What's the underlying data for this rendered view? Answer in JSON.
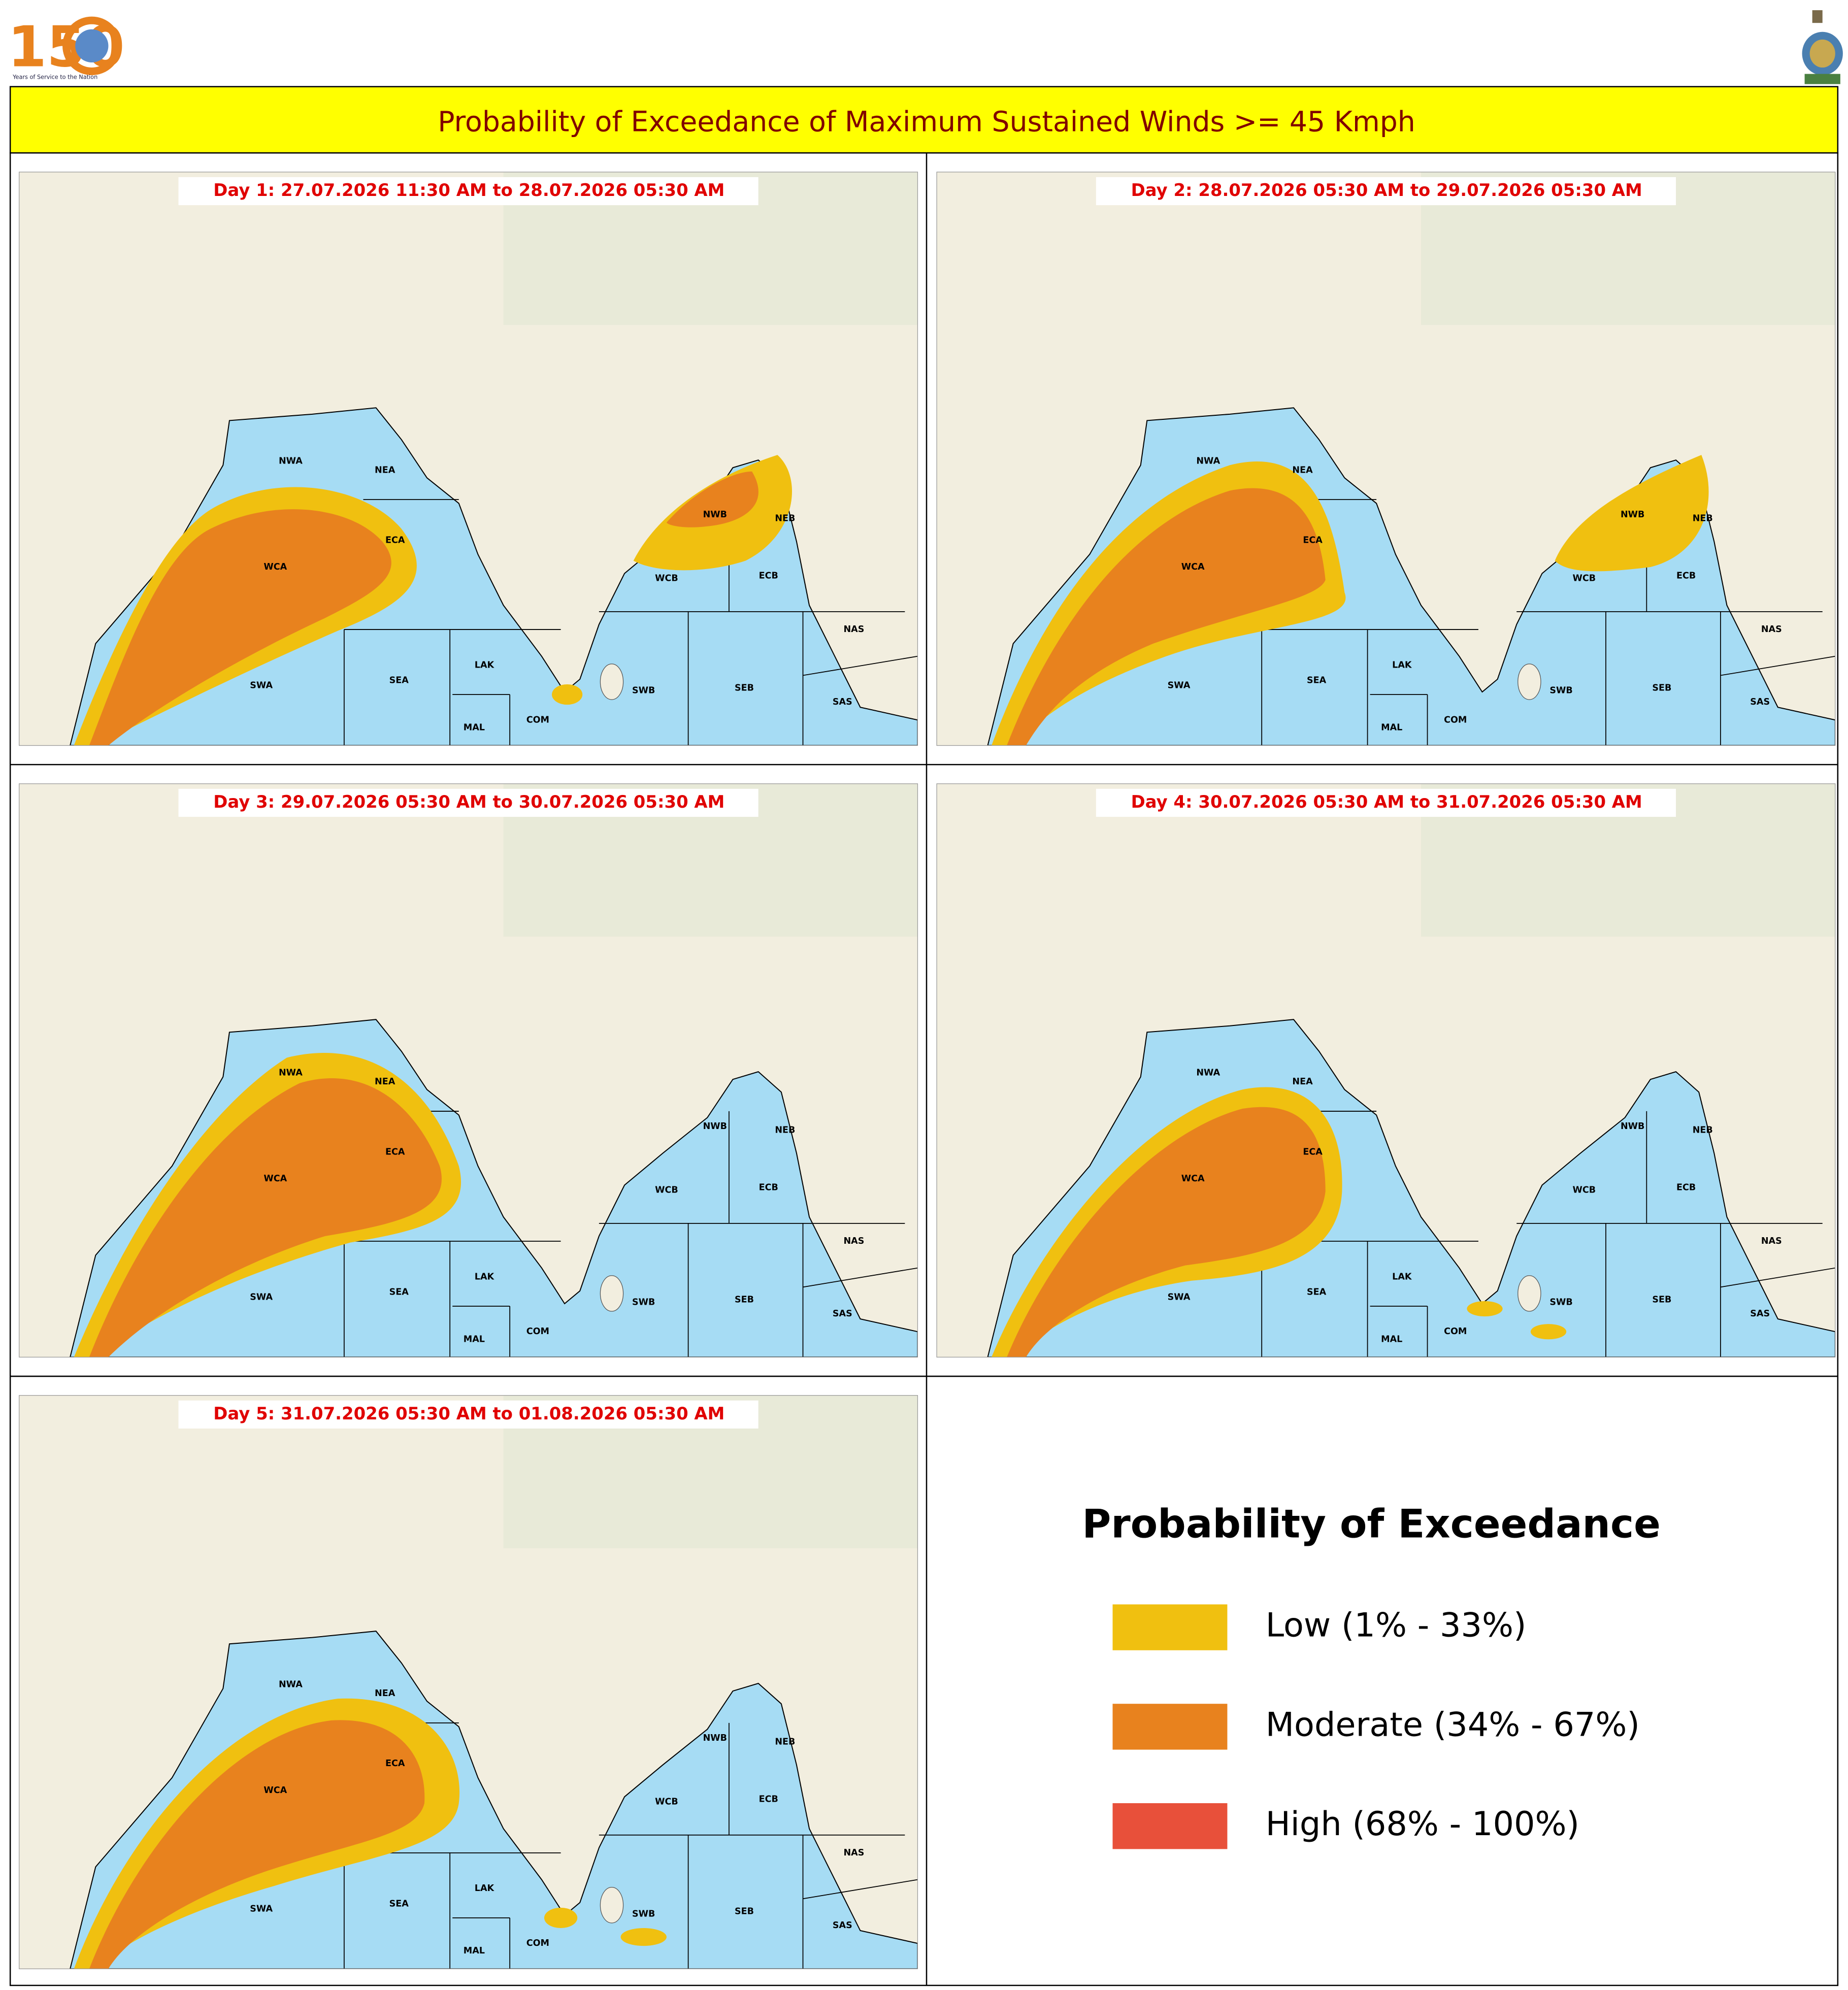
{
  "header": {
    "logo_number": "150",
    "logo_tagline": "Years of Service to the Nation"
  },
  "title": "Probability of Exceedance of Maximum Sustained Winds >= 45 Kmph",
  "panels": [
    {
      "label": "Day 1: 27.07.2026 11:30 AM to 28.07.2026 05:30 AM"
    },
    {
      "label": "Day 2: 28.07.2026 05:30 AM to 29.07.2026 05:30 AM"
    },
    {
      "label": "Day 3: 29.07.2026 05:30 AM to 30.07.2026 05:30 AM"
    },
    {
      "label": "Day 4: 30.07.2026 05:30 AM to 31.07.2026 05:30 AM"
    },
    {
      "label": "Day 5: 31.07.2026 05:30 AM to 01.08.2026 05:30 AM"
    }
  ],
  "region_labels": [
    "NWA",
    "NEA",
    "ECA",
    "WCA",
    "SWA",
    "SEA",
    "LAK",
    "MAL",
    "COM",
    "NWB",
    "NEB",
    "WCB",
    "ECB",
    "NAS",
    "SWB",
    "SEB",
    "SAS"
  ],
  "legend": {
    "title": "Probability of Exceedance",
    "items": [
      {
        "label": "Low (1% - 33%)",
        "color": "#f0c010"
      },
      {
        "label": "Moderate (34% - 67%)",
        "color": "#e8821e"
      },
      {
        "label": "High (68% - 100%)",
        "color": "#e8503a"
      }
    ]
  }
}
